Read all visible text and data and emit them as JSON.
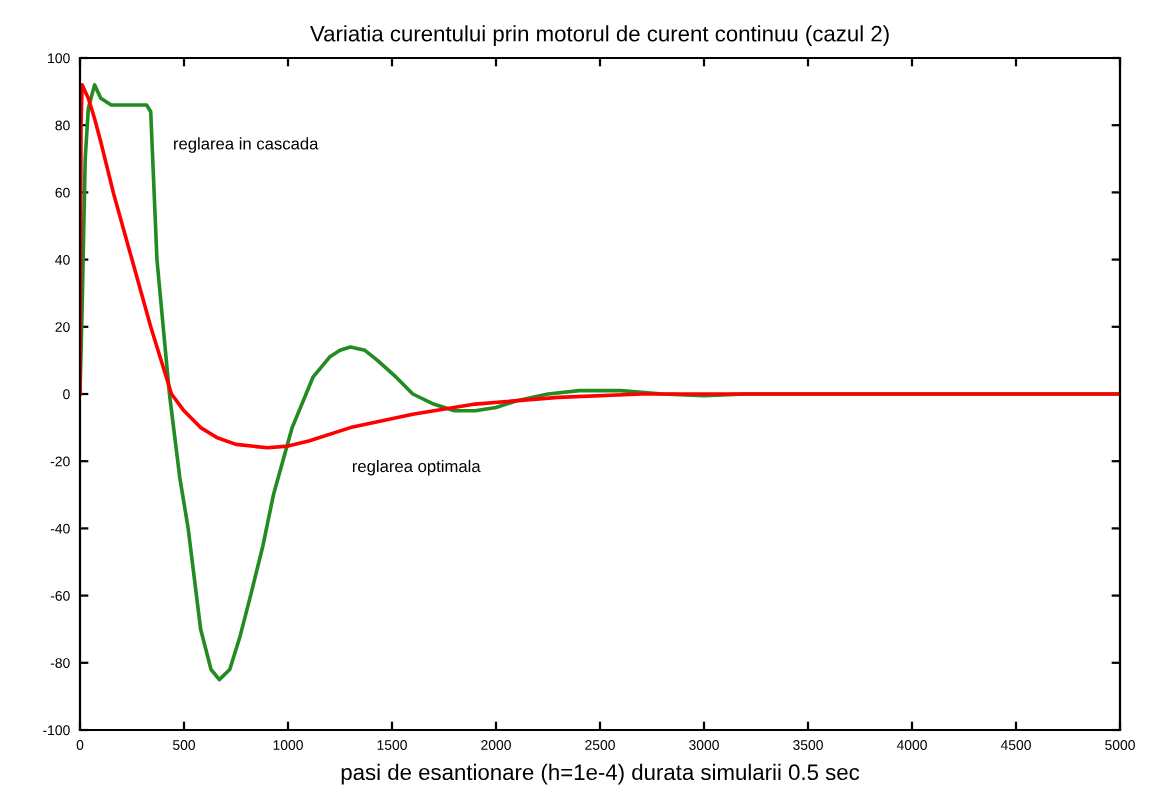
{
  "chart_data": {
    "type": "line",
    "title": "Variatia curentului prin motorul de curent continuu (cazul 2)",
    "xlabel": "pasi de esantionare (h=1e-4) durata simularii 0.5 sec",
    "xlim": [
      0,
      5000
    ],
    "ylim": [
      -100,
      100
    ],
    "xticks": [
      0,
      500,
      1000,
      1500,
      2000,
      2500,
      3000,
      3500,
      4000,
      4500,
      5000
    ],
    "yticks": [
      -100,
      -80,
      -60,
      -40,
      -20,
      0,
      20,
      40,
      60,
      80,
      100
    ],
    "grid": false,
    "legend": false,
    "marker": "none",
    "line_style": "solid",
    "annotations": [
      {
        "text": "reglarea in cascada",
        "x": 340,
        "y": 84
      },
      {
        "text": "reglarea optimala",
        "x": 1200,
        "y": -12
      }
    ],
    "series": [
      {
        "color": "#228b22",
        "x": [
          0,
          10,
          25,
          40,
          70,
          100,
          150,
          250,
          320,
          340,
          370,
          400,
          430,
          480,
          520,
          580,
          630,
          670,
          720,
          770,
          820,
          880,
          930,
          1020,
          1120,
          1200,
          1250,
          1300,
          1370,
          1430,
          1520,
          1600,
          1700,
          1800,
          1900,
          2000,
          2100,
          2250,
          2400,
          2600,
          2800,
          3000,
          3200,
          5000
        ],
        "values": [
          0,
          25,
          70,
          85,
          92,
          88,
          86,
          86,
          86,
          84,
          40,
          20,
          0,
          -25,
          -40,
          -70,
          -82,
          -85,
          -82,
          -72,
          -60,
          -45,
          -30,
          -10,
          5,
          11,
          13,
          14,
          13,
          10,
          5,
          0,
          -3,
          -5,
          -5,
          -4,
          -2,
          0,
          1,
          1,
          0,
          -0.5,
          0,
          0
        ]
      },
      {
        "color": "#ff0000",
        "x": [
          0,
          5,
          10,
          25,
          40,
          70,
          100,
          160,
          250,
          340,
          440,
          500,
          580,
          660,
          750,
          900,
          1000,
          1100,
          1300,
          1600,
          1900,
          2300,
          2700,
          5000
        ],
        "values": [
          0,
          80,
          92,
          90,
          88,
          82,
          75,
          60,
          40,
          20,
          0,
          -5,
          -10,
          -13,
          -15,
          -16,
          -15.5,
          -14,
          -10,
          -6,
          -3,
          -1,
          0,
          0
        ]
      }
    ]
  }
}
